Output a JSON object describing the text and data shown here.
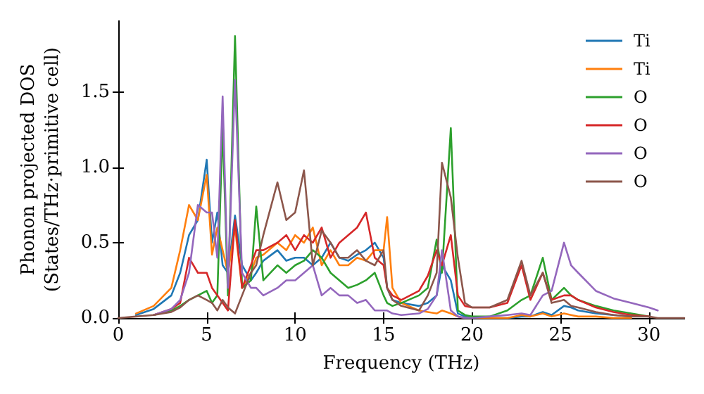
{
  "chart_data": {
    "type": "line",
    "xlabel": "Frequency (THz)",
    "ylabel": "Phonon projected DOS\n(States/THz·primitive cell)",
    "x": [
      0,
      1,
      2,
      3,
      3.5,
      4,
      4.5,
      5,
      5.3,
      5.6,
      5.9,
      6.2,
      6.6,
      7,
      7.5,
      7.8,
      8.2,
      9,
      9.5,
      10,
      10.5,
      11,
      11.5,
      12,
      12.5,
      13,
      13.5,
      14,
      14.5,
      15,
      15.2,
      15.5,
      16,
      17,
      17.5,
      18,
      18.3,
      18.8,
      19.2,
      19.6,
      20,
      21,
      22,
      22.8,
      23.3,
      24,
      24.5,
      25.2,
      25.6,
      26,
      27,
      28,
      29,
      30,
      30.5,
      31,
      32
    ],
    "series": [
      {
        "name": "Ti",
        "color": "#1f77b4",
        "values": [
          null,
          0.02,
          0.06,
          0.15,
          0.3,
          0.55,
          0.65,
          1.05,
          0.5,
          0.7,
          0.35,
          0.3,
          0.68,
          0.35,
          0.25,
          0.3,
          0.38,
          0.45,
          0.38,
          0.4,
          0.4,
          0.35,
          0.4,
          0.5,
          0.4,
          0.38,
          0.42,
          0.45,
          0.5,
          0.4,
          0.2,
          0.12,
          0.1,
          0.08,
          0.1,
          0.15,
          0.35,
          0.25,
          0.03,
          0.01,
          0,
          0,
          0,
          0.01,
          0.01,
          0.04,
          0.02,
          0.08,
          0.07,
          0.05,
          0.03,
          0.02,
          0.01,
          null,
          null,
          null,
          null
        ]
      },
      {
        "name": "Ti",
        "color": "#ff7f0e",
        "values": [
          null,
          0.03,
          0.08,
          0.2,
          0.45,
          0.75,
          0.65,
          0.95,
          0.42,
          0.6,
          0.45,
          0.3,
          0.6,
          0.2,
          0.3,
          0.4,
          0.42,
          0.5,
          0.45,
          0.55,
          0.5,
          0.6,
          0.35,
          0.45,
          0.35,
          0.35,
          0.4,
          0.38,
          0.45,
          0.45,
          0.67,
          0.2,
          0.1,
          0.05,
          0.04,
          0.03,
          0.05,
          0.03,
          0.01,
          0,
          0,
          0,
          0,
          0.02,
          0.01,
          0.03,
          0.01,
          0.03,
          0.02,
          0.01,
          0.01,
          0,
          0,
          null,
          null,
          null,
          null
        ]
      },
      {
        "name": "O",
        "color": "#2ca02c",
        "values": [
          null,
          null,
          0.02,
          0.05,
          0.08,
          0.12,
          0.15,
          0.18,
          0.1,
          0.15,
          1.27,
          0.15,
          1.87,
          0.2,
          0.25,
          0.74,
          0.25,
          0.35,
          0.3,
          0.35,
          0.38,
          0.45,
          0.4,
          0.3,
          0.25,
          0.2,
          0.22,
          0.25,
          0.3,
          0.15,
          0.1,
          0.08,
          0.1,
          0.15,
          0.2,
          0.52,
          0.3,
          1.26,
          0.05,
          0.02,
          0.01,
          0.01,
          0.05,
          0.12,
          0.15,
          0.4,
          0.12,
          0.2,
          0.15,
          0.12,
          0.08,
          0.05,
          0.03,
          0.01,
          null,
          null,
          null
        ]
      },
      {
        "name": "O",
        "color": "#d62728",
        "values": [
          null,
          null,
          0.02,
          0.06,
          0.1,
          0.4,
          0.3,
          0.3,
          0.2,
          0.15,
          0.1,
          0.05,
          0.65,
          0.2,
          0.35,
          0.45,
          0.45,
          0.5,
          0.55,
          0.45,
          0.55,
          0.5,
          0.6,
          0.4,
          0.5,
          0.55,
          0.6,
          0.7,
          0.4,
          0.35,
          0.2,
          0.15,
          0.12,
          0.18,
          0.28,
          0.45,
          0.35,
          0.55,
          0.15,
          0.08,
          0.07,
          0.07,
          0.1,
          0.35,
          0.12,
          0.3,
          0.12,
          0.15,
          0.15,
          0.12,
          0.07,
          0.04,
          0.02,
          0.01,
          null,
          null,
          null
        ]
      },
      {
        "name": "O",
        "color": "#9467bd",
        "values": [
          null,
          null,
          0.02,
          0.06,
          0.12,
          0.3,
          0.75,
          0.7,
          0.7,
          0.4,
          1.47,
          0.2,
          1.58,
          0.3,
          0.2,
          0.2,
          0.15,
          0.2,
          0.25,
          0.25,
          0.3,
          0.35,
          0.15,
          0.2,
          0.15,
          0.15,
          0.1,
          0.12,
          0.05,
          0.05,
          0.05,
          0.03,
          0.02,
          0.03,
          0.06,
          0.15,
          0.45,
          0.05,
          0.01,
          0,
          0,
          0.01,
          0.02,
          0.03,
          0.02,
          0.15,
          0.18,
          0.5,
          0.35,
          0.3,
          0.18,
          0.13,
          0.1,
          0.07,
          0.05,
          null,
          null
        ]
      },
      {
        "name": "O",
        "color": "#8c564b",
        "values": [
          0,
          0.01,
          0.02,
          0.04,
          0.07,
          0.12,
          0.15,
          0.12,
          0.1,
          0.05,
          0.12,
          0.07,
          0.03,
          0.15,
          0.3,
          0.35,
          0.55,
          0.9,
          0.65,
          0.7,
          0.98,
          0.35,
          0.58,
          0.5,
          0.4,
          0.4,
          0.45,
          0.38,
          0.35,
          0.45,
          0.2,
          0.12,
          0.08,
          0.05,
          0.15,
          0.3,
          1.03,
          0.8,
          0.4,
          0.1,
          0.07,
          0.07,
          0.12,
          0.38,
          0.15,
          0.3,
          0.1,
          0.12,
          0.08,
          0.07,
          0.04,
          0.02,
          0.01,
          0.01,
          0,
          0,
          0
        ]
      }
    ],
    "xlim": [
      0,
      32
    ],
    "xticks": [
      0,
      5,
      10,
      15,
      20,
      25,
      30
    ],
    "ylim": [
      0,
      1.97
    ],
    "yticks": [
      {
        "value": 0,
        "label": "0.0"
      },
      0.5,
      {
        "value": 1,
        "label": "1.0"
      },
      1.5
    ],
    "legend": "top right",
    "grid": false,
    "marker": "none",
    "line_style": "solid"
  }
}
